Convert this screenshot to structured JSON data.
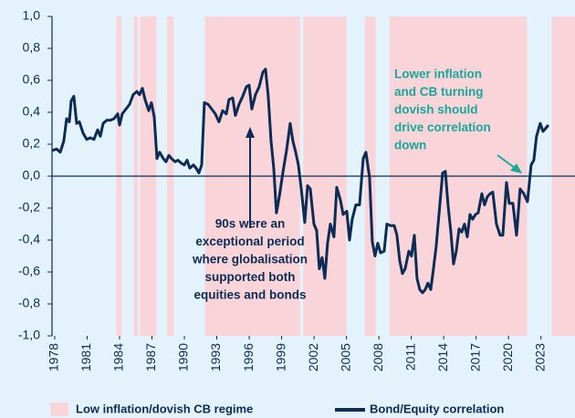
{
  "chart_data": {
    "type": "line",
    "xlim": [
      1977.75,
      2026.15
    ],
    "ylim": [
      -1,
      1
    ],
    "xticks": [
      1978,
      1981,
      1984,
      1987,
      1990,
      1993,
      1996,
      1999,
      2002,
      2005,
      2008,
      2011,
      2014,
      2017,
      2020,
      2023
    ],
    "yticks": [
      {
        "value": 1,
        "label": "1,0"
      },
      {
        "value": 0.8,
        "label": "0,8"
      },
      {
        "value": 0.6,
        "label": "0,6"
      },
      {
        "value": 0.4,
        "label": "0,4"
      },
      {
        "value": 0.2,
        "label": "0,2"
      },
      {
        "value": 0,
        "label": "0,0"
      },
      {
        "value": -0.2,
        "label": "-0,2"
      },
      {
        "value": -0.4,
        "label": "-0,4"
      },
      {
        "value": -0.6,
        "label": "-0,6"
      },
      {
        "value": -0.8,
        "label": "-0,8"
      },
      {
        "value": -1,
        "label": "-1,0"
      }
    ],
    "regimes": {
      "name": "Low inflation/dovish CB regime",
      "color": "#f9d5da",
      "ranges": [
        [
          1983.7,
          1984.2
        ],
        [
          1985.3,
          1985.7
        ],
        [
          1985.9,
          1987.4
        ],
        [
          1988.4,
          1989.0
        ],
        [
          1991.9,
          2000.7
        ],
        [
          2001.0,
          2005.0
        ],
        [
          2006.7,
          2007.7
        ],
        [
          2009.0,
          2021.7
        ],
        [
          2024.0,
          2026.15
        ]
      ]
    },
    "x": [
      1977.75,
      1978.17,
      1978.51,
      1978.84,
      1979.1,
      1979.35,
      1979.52,
      1979.77,
      1980.03,
      1980.28,
      1980.62,
      1980.96,
      1981.29,
      1981.63,
      1981.97,
      1982.22,
      1982.48,
      1982.81,
      1983.15,
      1983.49,
      1983.83,
      1984.0,
      1984.25,
      1984.59,
      1984.93,
      1985.26,
      1985.6,
      1985.85,
      1986.11,
      1986.36,
      1986.7,
      1986.95,
      1987.21,
      1987.46,
      1987.71,
      1988.05,
      1988.3,
      1988.56,
      1988.81,
      1989.15,
      1989.4,
      1989.74,
      1989.99,
      1990.25,
      1990.5,
      1990.84,
      1991.09,
      1991.34,
      1991.6,
      1991.85,
      1992.19,
      1992.53,
      1992.86,
      1993.2,
      1993.54,
      1993.88,
      1994.13,
      1994.47,
      1994.72,
      1995.06,
      1995.4,
      1995.74,
      1995.99,
      1996.24,
      1996.58,
      1996.92,
      1997.26,
      1997.51,
      1997.76,
      1998.02,
      1998.27,
      1998.52,
      1998.78,
      1999.11,
      1999.45,
      1999.79,
      2000.04,
      2000.3,
      2000.55,
      2000.8,
      2001.14,
      2001.4,
      2001.65,
      2001.99,
      2002.24,
      2002.49,
      2002.75,
      2003.0,
      2003.25,
      2003.51,
      2003.84,
      2004.1,
      2004.44,
      2004.69,
      2005.03,
      2005.28,
      2005.53,
      2005.87,
      2006.21,
      2006.55,
      2006.8,
      2007.14,
      2007.39,
      2007.64,
      2007.9,
      2008.15,
      2008.49,
      2008.74,
      2009.08,
      2009.42,
      2009.67,
      2009.93,
      2010.18,
      2010.43,
      2010.77,
      2011.02,
      2011.28,
      2011.53,
      2011.78,
      2012.04,
      2012.29,
      2012.54,
      2012.8,
      2013.05,
      2013.3,
      2013.64,
      2013.9,
      2014.15,
      2014.4,
      2014.66,
      2014.91,
      2015.16,
      2015.42,
      2015.67,
      2015.92,
      2016.18,
      2016.43,
      2016.68,
      2016.94,
      2017.19,
      2017.53,
      2017.78,
      2018.03,
      2018.29,
      2018.54,
      2018.88,
      2019.22,
      2019.47,
      2019.81,
      2020.06,
      2020.4,
      2020.74,
      2021.07,
      2021.41,
      2021.75,
      2022.09,
      2022.34,
      2022.59,
      2022.93,
      2023.19,
      2023.44,
      2023.69
    ],
    "series": [
      {
        "name": "Bond/Equity correlation",
        "color": "#0c2c55",
        "values": [
          0.16,
          0.17,
          0.15,
          0.22,
          0.36,
          0.34,
          0.47,
          0.5,
          0.33,
          0.34,
          0.27,
          0.23,
          0.24,
          0.23,
          0.29,
          0.25,
          0.33,
          0.35,
          0.35,
          0.36,
          0.39,
          0.32,
          0.39,
          0.42,
          0.45,
          0.51,
          0.53,
          0.51,
          0.55,
          0.48,
          0.41,
          0.46,
          0.37,
          0.11,
          0.15,
          0.11,
          0.09,
          0.13,
          0.11,
          0.09,
          0.1,
          0.08,
          0.07,
          0.1,
          0.05,
          0.07,
          0.05,
          0.02,
          0.07,
          0.46,
          0.45,
          0.42,
          0.39,
          0.34,
          0.41,
          0.39,
          0.48,
          0.49,
          0.38,
          0.45,
          0.5,
          0.56,
          0.57,
          0.42,
          0.51,
          0.56,
          0.65,
          0.67,
          0.5,
          0.22,
          0.05,
          -0.23,
          -0.13,
          0.02,
          0.16,
          0.33,
          0.22,
          0.15,
          0.07,
          -0.07,
          -0.29,
          -0.06,
          -0.08,
          -0.3,
          -0.34,
          -0.58,
          -0.51,
          -0.64,
          -0.42,
          -0.3,
          -0.38,
          -0.07,
          -0.15,
          -0.24,
          -0.22,
          -0.4,
          -0.27,
          -0.18,
          -0.18,
          0.11,
          0.15,
          -0.01,
          -0.41,
          -0.5,
          -0.42,
          -0.48,
          -0.47,
          -0.3,
          -0.31,
          -0.31,
          -0.37,
          -0.53,
          -0.61,
          -0.58,
          -0.47,
          -0.5,
          -0.37,
          -0.64,
          -0.71,
          -0.73,
          -0.71,
          -0.67,
          -0.71,
          -0.58,
          -0.44,
          -0.18,
          0.02,
          0.03,
          -0.18,
          -0.35,
          -0.55,
          -0.47,
          -0.33,
          -0.35,
          -0.3,
          -0.38,
          -0.24,
          -0.27,
          -0.24,
          -0.23,
          -0.11,
          -0.18,
          -0.13,
          -0.11,
          -0.1,
          -0.3,
          -0.37,
          -0.37,
          -0.04,
          -0.17,
          -0.17,
          -0.37,
          -0.08,
          -0.11,
          -0.16,
          0.07,
          0.1,
          0.25,
          0.33,
          0.28,
          0.3,
          0.32
        ]
      }
    ],
    "annotations": [
      {
        "lines": [
          "90s were an",
          "exceptional period",
          "where globalisation",
          "supported both",
          "equities and bonds"
        ],
        "color": "#0c2c55"
      },
      {
        "lines": [
          "Lower inflation",
          "and CB turning",
          "dovish should",
          "drive correlation",
          "down"
        ],
        "color": "#17a89b"
      }
    ]
  }
}
